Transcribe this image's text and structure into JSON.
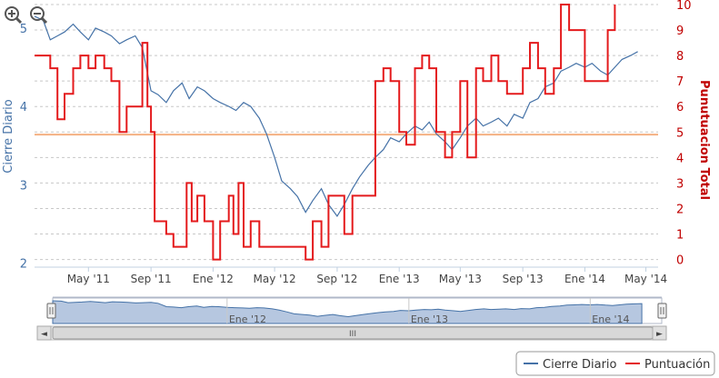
{
  "zoom": {
    "in_icon": "zoom-in-icon",
    "out_icon": "zoom-out-icon"
  },
  "chart_data": {
    "type": "line",
    "grid": true,
    "x_ticks": [
      "May '11",
      "Sep '11",
      "Ene '12",
      "May '12",
      "Sep '12",
      "Ene '13",
      "May '13",
      "Sep '13",
      "Ene '14",
      "May '14"
    ],
    "x_tick_dates": [
      "2011-05-01",
      "2011-09-01",
      "2012-01-01",
      "2012-05-01",
      "2012-09-01",
      "2013-01-01",
      "2013-05-01",
      "2013-09-01",
      "2014-01-01",
      "2014-05-01"
    ],
    "x_range": [
      "2011-01-15",
      "2014-05-25"
    ],
    "y_left": {
      "label": "Cierre Diario",
      "range": [
        1.95,
        5.3
      ],
      "ticks": [
        "2",
        "3",
        "4",
        "5"
      ]
    },
    "y_right": {
      "label": "Punutuacion Total",
      "range": [
        -0.3,
        10
      ],
      "ticks": [
        "0",
        "1",
        "2",
        "3",
        "4",
        "5",
        "6",
        "7",
        "8",
        "9",
        "10"
      ]
    },
    "reference_line": {
      "axis": "right",
      "value": 4.9,
      "color": "#f4b183"
    },
    "series": [
      {
        "name": "Cierre Diario",
        "axis": "left",
        "color": "#4572a7",
        "points": [
          [
            "2011-01-15",
            5.15
          ],
          [
            "2011-02-01",
            5.1
          ],
          [
            "2011-02-15",
            4.85
          ],
          [
            "2011-03-01",
            4.9
          ],
          [
            "2011-03-15",
            4.95
          ],
          [
            "2011-04-01",
            5.05
          ],
          [
            "2011-04-15",
            4.95
          ],
          [
            "2011-05-01",
            4.85
          ],
          [
            "2011-05-15",
            5.0
          ],
          [
            "2011-06-01",
            4.95
          ],
          [
            "2011-06-15",
            4.9
          ],
          [
            "2011-07-01",
            4.8
          ],
          [
            "2011-07-15",
            4.85
          ],
          [
            "2011-08-01",
            4.9
          ],
          [
            "2011-08-15",
            4.75
          ],
          [
            "2011-09-01",
            4.2
          ],
          [
            "2011-09-15",
            4.15
          ],
          [
            "2011-10-01",
            4.05
          ],
          [
            "2011-10-15",
            4.2
          ],
          [
            "2011-11-01",
            4.3
          ],
          [
            "2011-11-15",
            4.1
          ],
          [
            "2011-12-01",
            4.25
          ],
          [
            "2011-12-15",
            4.2
          ],
          [
            "2012-01-01",
            4.1
          ],
          [
            "2012-01-15",
            4.05
          ],
          [
            "2012-02-01",
            4.0
          ],
          [
            "2012-02-15",
            3.95
          ],
          [
            "2012-03-01",
            4.05
          ],
          [
            "2012-03-15",
            4.0
          ],
          [
            "2012-04-01",
            3.85
          ],
          [
            "2012-04-15",
            3.65
          ],
          [
            "2012-05-01",
            3.35
          ],
          [
            "2012-05-15",
            3.05
          ],
          [
            "2012-06-01",
            2.95
          ],
          [
            "2012-06-15",
            2.85
          ],
          [
            "2012-07-01",
            2.65
          ],
          [
            "2012-07-15",
            2.8
          ],
          [
            "2012-08-01",
            2.95
          ],
          [
            "2012-08-15",
            2.75
          ],
          [
            "2012-09-01",
            2.6
          ],
          [
            "2012-09-15",
            2.75
          ],
          [
            "2012-10-01",
            2.95
          ],
          [
            "2012-10-15",
            3.1
          ],
          [
            "2012-11-01",
            3.25
          ],
          [
            "2012-11-15",
            3.35
          ],
          [
            "2012-12-01",
            3.45
          ],
          [
            "2012-12-15",
            3.6
          ],
          [
            "2013-01-01",
            3.55
          ],
          [
            "2013-01-15",
            3.65
          ],
          [
            "2013-02-01",
            3.75
          ],
          [
            "2013-02-15",
            3.7
          ],
          [
            "2013-03-01",
            3.8
          ],
          [
            "2013-03-15",
            3.65
          ],
          [
            "2013-04-01",
            3.55
          ],
          [
            "2013-04-15",
            3.45
          ],
          [
            "2013-05-01",
            3.6
          ],
          [
            "2013-05-15",
            3.75
          ],
          [
            "2013-06-01",
            3.85
          ],
          [
            "2013-06-15",
            3.75
          ],
          [
            "2013-07-01",
            3.8
          ],
          [
            "2013-07-15",
            3.85
          ],
          [
            "2013-08-01",
            3.75
          ],
          [
            "2013-08-15",
            3.9
          ],
          [
            "2013-09-01",
            3.85
          ],
          [
            "2013-09-15",
            4.05
          ],
          [
            "2013-10-01",
            4.1
          ],
          [
            "2013-10-15",
            4.25
          ],
          [
            "2013-11-01",
            4.3
          ],
          [
            "2013-11-15",
            4.45
          ],
          [
            "2013-12-01",
            4.5
          ],
          [
            "2013-12-15",
            4.55
          ],
          [
            "2014-01-01",
            4.5
          ],
          [
            "2014-01-15",
            4.55
          ],
          [
            "2014-02-01",
            4.45
          ],
          [
            "2014-02-15",
            4.4
          ],
          [
            "2014-03-01",
            4.5
          ],
          [
            "2014-03-15",
            4.6
          ],
          [
            "2014-04-01",
            4.65
          ],
          [
            "2014-04-15",
            4.7
          ]
        ]
      },
      {
        "name": "Puntuación",
        "axis": "right",
        "color": "#e41a1c",
        "points": [
          [
            "2011-01-15",
            8
          ],
          [
            "2011-02-15",
            7.5
          ],
          [
            "2011-03-01",
            5.5
          ],
          [
            "2011-03-15",
            6.5
          ],
          [
            "2011-04-01",
            7.5
          ],
          [
            "2011-04-15",
            8
          ],
          [
            "2011-05-01",
            7.5
          ],
          [
            "2011-05-15",
            8
          ],
          [
            "2011-06-01",
            7.5
          ],
          [
            "2011-06-15",
            7
          ],
          [
            "2011-07-01",
            5
          ],
          [
            "2011-07-15",
            6
          ],
          [
            "2011-08-01",
            6
          ],
          [
            "2011-08-15",
            8.5
          ],
          [
            "2011-08-25",
            6
          ],
          [
            "2011-09-01",
            5
          ],
          [
            "2011-09-08",
            1.5
          ],
          [
            "2011-09-20",
            1.5
          ],
          [
            "2011-10-01",
            1
          ],
          [
            "2011-10-15",
            0.5
          ],
          [
            "2011-11-01",
            0.5
          ],
          [
            "2011-11-10",
            3
          ],
          [
            "2011-11-20",
            1.5
          ],
          [
            "2011-12-01",
            2.5
          ],
          [
            "2011-12-15",
            1.5
          ],
          [
            "2012-01-01",
            0
          ],
          [
            "2012-01-15",
            1.5
          ],
          [
            "2012-02-01",
            2.5
          ],
          [
            "2012-02-10",
            1
          ],
          [
            "2012-02-20",
            3
          ],
          [
            "2012-03-01",
            0.5
          ],
          [
            "2012-03-15",
            1.5
          ],
          [
            "2012-04-01",
            0.5
          ],
          [
            "2012-04-15",
            0.5
          ],
          [
            "2012-05-01",
            0.5
          ],
          [
            "2012-05-15",
            0.5
          ],
          [
            "2012-06-01",
            0.5
          ],
          [
            "2012-06-15",
            0.5
          ],
          [
            "2012-07-01",
            0
          ],
          [
            "2012-07-15",
            1.5
          ],
          [
            "2012-08-01",
            0.5
          ],
          [
            "2012-08-15",
            2.5
          ],
          [
            "2012-09-01",
            2.5
          ],
          [
            "2012-09-15",
            1
          ],
          [
            "2012-10-01",
            2.5
          ],
          [
            "2012-10-15",
            2.5
          ],
          [
            "2012-11-01",
            2.5
          ],
          [
            "2012-11-15",
            7
          ],
          [
            "2012-12-01",
            7.5
          ],
          [
            "2012-12-15",
            7
          ],
          [
            "2013-01-01",
            5
          ],
          [
            "2013-01-15",
            4.5
          ],
          [
            "2013-02-01",
            7.5
          ],
          [
            "2013-02-15",
            8
          ],
          [
            "2013-03-01",
            7.5
          ],
          [
            "2013-03-15",
            5
          ],
          [
            "2013-04-01",
            4
          ],
          [
            "2013-04-15",
            5
          ],
          [
            "2013-05-01",
            7
          ],
          [
            "2013-05-15",
            4
          ],
          [
            "2013-06-01",
            7.5
          ],
          [
            "2013-06-15",
            7
          ],
          [
            "2013-07-01",
            8
          ],
          [
            "2013-07-15",
            7
          ],
          [
            "2013-08-01",
            6.5
          ],
          [
            "2013-08-15",
            6.5
          ],
          [
            "2013-09-01",
            7.5
          ],
          [
            "2013-09-15",
            8.5
          ],
          [
            "2013-10-01",
            7.5
          ],
          [
            "2013-10-15",
            6.5
          ],
          [
            "2013-11-01",
            7.5
          ],
          [
            "2013-11-15",
            10
          ],
          [
            "2013-12-01",
            9
          ],
          [
            "2013-12-15",
            9
          ],
          [
            "2014-01-01",
            7
          ],
          [
            "2014-01-15",
            7
          ],
          [
            "2014-02-01",
            7
          ],
          [
            "2014-02-15",
            9
          ],
          [
            "2014-03-01",
            10
          ]
        ]
      }
    ]
  },
  "navigator": {
    "labels": [
      "Ene '12",
      "Ene '13",
      "Ene '14"
    ],
    "label_dates": [
      "2012-01-01",
      "2013-01-01",
      "2014-01-01"
    ],
    "scrollbar_grip": "III",
    "left_arrow": "◄",
    "right_arrow": "►"
  },
  "legend": {
    "items": [
      {
        "label": "Cierre Diario",
        "color": "#4572a7"
      },
      {
        "label": "Puntuación",
        "color": "#e41a1c"
      }
    ]
  }
}
